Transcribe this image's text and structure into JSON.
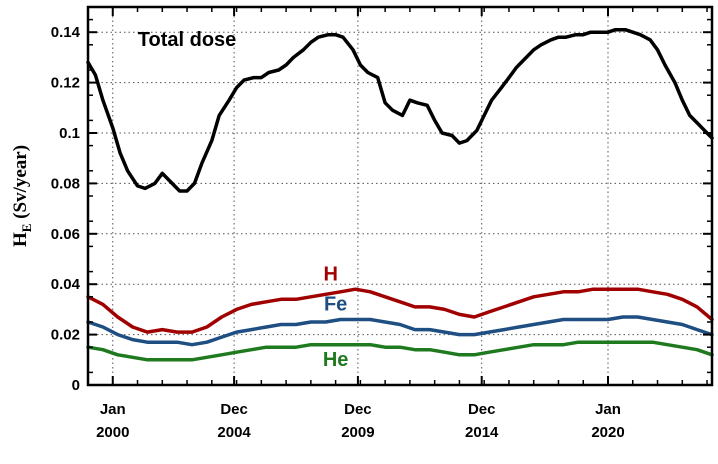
{
  "chart_data": {
    "type": "line",
    "xlabel": "",
    "ylabel": "H",
    "ylabel_subscript": "E",
    "ylabel_units": " (Sv/year)",
    "xlim": [
      1999.0,
      2024.2
    ],
    "ylim": [
      0,
      0.15
    ],
    "grid": true,
    "x_ticks": [
      {
        "value": 2000.0,
        "month": "Jan",
        "year": "2000"
      },
      {
        "value": 2004.9,
        "month": "Dec",
        "year": "2004"
      },
      {
        "value": 2009.9,
        "month": "Dec",
        "year": "2009"
      },
      {
        "value": 2014.9,
        "month": "Dec",
        "year": "2014"
      },
      {
        "value": 2020.0,
        "month": "Jan",
        "year": "2020"
      }
    ],
    "y_ticks": [
      {
        "value": 0,
        "label": "0"
      },
      {
        "value": 0.02,
        "label": "0.02"
      },
      {
        "value": 0.04,
        "label": "0.04"
      },
      {
        "value": 0.06,
        "label": "0.06"
      },
      {
        "value": 0.08,
        "label": "0.08"
      },
      {
        "value": 0.1,
        "label": "0.1"
      },
      {
        "value": 0.12,
        "label": "0.12"
      },
      {
        "value": 0.14,
        "label": "0.14"
      }
    ],
    "series": [
      {
        "name": "Total dose",
        "color": "#000000",
        "label_at": [
          2003.0,
          0.1345
        ],
        "x": [
          1999.0,
          1999.3,
          1999.6,
          2000.0,
          2000.3,
          2000.6,
          2001.0,
          2001.3,
          2001.7,
          2002.0,
          2002.3,
          2002.7,
          2003.0,
          2003.3,
          2003.6,
          2004.0,
          2004.3,
          2004.7,
          2005.0,
          2005.3,
          2005.7,
          2006.0,
          2006.3,
          2006.7,
          2007.0,
          2007.3,
          2007.7,
          2008.0,
          2008.3,
          2008.7,
          2009.0,
          2009.3,
          2009.7,
          2010.0,
          2010.3,
          2010.7,
          2011.0,
          2011.3,
          2011.7,
          2012.0,
          2012.3,
          2012.7,
          2013.0,
          2013.3,
          2013.7,
          2014.0,
          2014.3,
          2014.7,
          2015.0,
          2015.3,
          2015.7,
          2016.0,
          2016.3,
          2016.7,
          2017.0,
          2017.3,
          2017.7,
          2018.0,
          2018.3,
          2018.7,
          2019.0,
          2019.3,
          2019.7,
          2020.0,
          2020.3,
          2020.7,
          2021.0,
          2021.3,
          2021.7,
          2022.0,
          2022.3,
          2022.7,
          2023.0,
          2023.3,
          2023.7,
          2024.0,
          2024.2
        ],
        "y": [
          0.128,
          0.123,
          0.113,
          0.102,
          0.092,
          0.085,
          0.079,
          0.078,
          0.08,
          0.084,
          0.081,
          0.077,
          0.077,
          0.08,
          0.088,
          0.097,
          0.107,
          0.113,
          0.118,
          0.121,
          0.122,
          0.122,
          0.124,
          0.125,
          0.127,
          0.13,
          0.133,
          0.136,
          0.138,
          0.139,
          0.139,
          0.138,
          0.133,
          0.127,
          0.124,
          0.122,
          0.112,
          0.109,
          0.107,
          0.113,
          0.112,
          0.111,
          0.105,
          0.1,
          0.099,
          0.096,
          0.097,
          0.101,
          0.107,
          0.113,
          0.118,
          0.122,
          0.126,
          0.13,
          0.133,
          0.135,
          0.137,
          0.138,
          0.138,
          0.139,
          0.139,
          0.14,
          0.14,
          0.14,
          0.141,
          0.141,
          0.14,
          0.139,
          0.137,
          0.133,
          0.127,
          0.12,
          0.113,
          0.107,
          0.103,
          0.1,
          0.098
        ]
      },
      {
        "name": "H",
        "color": "#a00000",
        "label_at": [
          2008.8,
          0.0415
        ],
        "x": [
          1999.0,
          1999.6,
          2000.2,
          2000.8,
          2001.4,
          2002.0,
          2002.6,
          2003.2,
          2003.8,
          2004.4,
          2005.0,
          2005.6,
          2006.2,
          2006.8,
          2007.4,
          2008.0,
          2008.6,
          2009.2,
          2009.8,
          2010.4,
          2011.0,
          2011.6,
          2012.2,
          2012.8,
          2013.4,
          2014.0,
          2014.6,
          2015.2,
          2015.8,
          2016.4,
          2017.0,
          2017.6,
          2018.2,
          2018.8,
          2019.4,
          2020.0,
          2020.6,
          2021.2,
          2021.8,
          2022.4,
          2023.0,
          2023.6,
          2024.2
        ],
        "y": [
          0.035,
          0.032,
          0.027,
          0.023,
          0.021,
          0.022,
          0.021,
          0.021,
          0.023,
          0.027,
          0.03,
          0.032,
          0.033,
          0.034,
          0.034,
          0.035,
          0.036,
          0.037,
          0.038,
          0.037,
          0.035,
          0.033,
          0.031,
          0.031,
          0.03,
          0.028,
          0.027,
          0.029,
          0.031,
          0.033,
          0.035,
          0.036,
          0.037,
          0.037,
          0.038,
          0.038,
          0.038,
          0.038,
          0.037,
          0.036,
          0.034,
          0.031,
          0.026
        ]
      },
      {
        "name": "Fe",
        "color": "#1f4e82",
        "label_at": [
          2009.0,
          0.0295
        ],
        "x": [
          1999.0,
          1999.6,
          2000.2,
          2000.8,
          2001.4,
          2002.0,
          2002.6,
          2003.2,
          2003.8,
          2004.4,
          2005.0,
          2005.6,
          2006.2,
          2006.8,
          2007.4,
          2008.0,
          2008.6,
          2009.2,
          2009.8,
          2010.4,
          2011.0,
          2011.6,
          2012.2,
          2012.8,
          2013.4,
          2014.0,
          2014.6,
          2015.2,
          2015.8,
          2016.4,
          2017.0,
          2017.6,
          2018.2,
          2018.8,
          2019.4,
          2020.0,
          2020.6,
          2021.2,
          2021.8,
          2022.4,
          2023.0,
          2023.6,
          2024.2
        ],
        "y": [
          0.025,
          0.023,
          0.02,
          0.018,
          0.017,
          0.017,
          0.017,
          0.016,
          0.017,
          0.019,
          0.021,
          0.022,
          0.023,
          0.024,
          0.024,
          0.025,
          0.025,
          0.026,
          0.026,
          0.026,
          0.025,
          0.024,
          0.022,
          0.022,
          0.021,
          0.02,
          0.02,
          0.021,
          0.022,
          0.023,
          0.024,
          0.025,
          0.026,
          0.026,
          0.026,
          0.026,
          0.027,
          0.027,
          0.026,
          0.025,
          0.024,
          0.022,
          0.02
        ]
      },
      {
        "name": "He",
        "color": "#1f7a1f",
        "label_at": [
          2009.0,
          0.0075
        ],
        "x": [
          1999.0,
          1999.6,
          2000.2,
          2000.8,
          2001.4,
          2002.0,
          2002.6,
          2003.2,
          2003.8,
          2004.4,
          2005.0,
          2005.6,
          2006.2,
          2006.8,
          2007.4,
          2008.0,
          2008.6,
          2009.2,
          2009.8,
          2010.4,
          2011.0,
          2011.6,
          2012.2,
          2012.8,
          2013.4,
          2014.0,
          2014.6,
          2015.2,
          2015.8,
          2016.4,
          2017.0,
          2017.6,
          2018.2,
          2018.8,
          2019.4,
          2020.0,
          2020.6,
          2021.2,
          2021.8,
          2022.4,
          2023.0,
          2023.6,
          2024.2
        ],
        "y": [
          0.015,
          0.014,
          0.012,
          0.011,
          0.01,
          0.01,
          0.01,
          0.01,
          0.011,
          0.012,
          0.013,
          0.014,
          0.015,
          0.015,
          0.015,
          0.016,
          0.016,
          0.016,
          0.016,
          0.016,
          0.015,
          0.015,
          0.014,
          0.014,
          0.013,
          0.012,
          0.012,
          0.013,
          0.014,
          0.015,
          0.016,
          0.016,
          0.016,
          0.017,
          0.017,
          0.017,
          0.017,
          0.017,
          0.017,
          0.016,
          0.015,
          0.014,
          0.012
        ]
      }
    ]
  }
}
